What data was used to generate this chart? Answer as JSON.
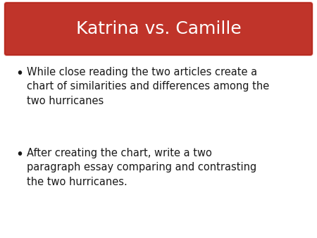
{
  "title": "Katrina vs. Camille",
  "title_color": "#ffffff",
  "title_bg_color": "#c0342a",
  "title_border_color": "#d9534f",
  "background_color": "#ffffff",
  "bullet1_line1": "While close reading the two articles create a",
  "bullet1_line2": "chart of similarities and differences among the",
  "bullet1_line3": "two hurricanes",
  "bullet2_line1": "After creating the chart, write a two",
  "bullet2_line2": "paragraph essay comparing and contrasting",
  "bullet2_line3": "the two hurricanes.",
  "bullet_color": "#1a1a1a",
  "bullet_font_size": 10.5,
  "title_font_size": 18,
  "fig_width": 4.5,
  "fig_height": 3.38,
  "dpi": 100
}
